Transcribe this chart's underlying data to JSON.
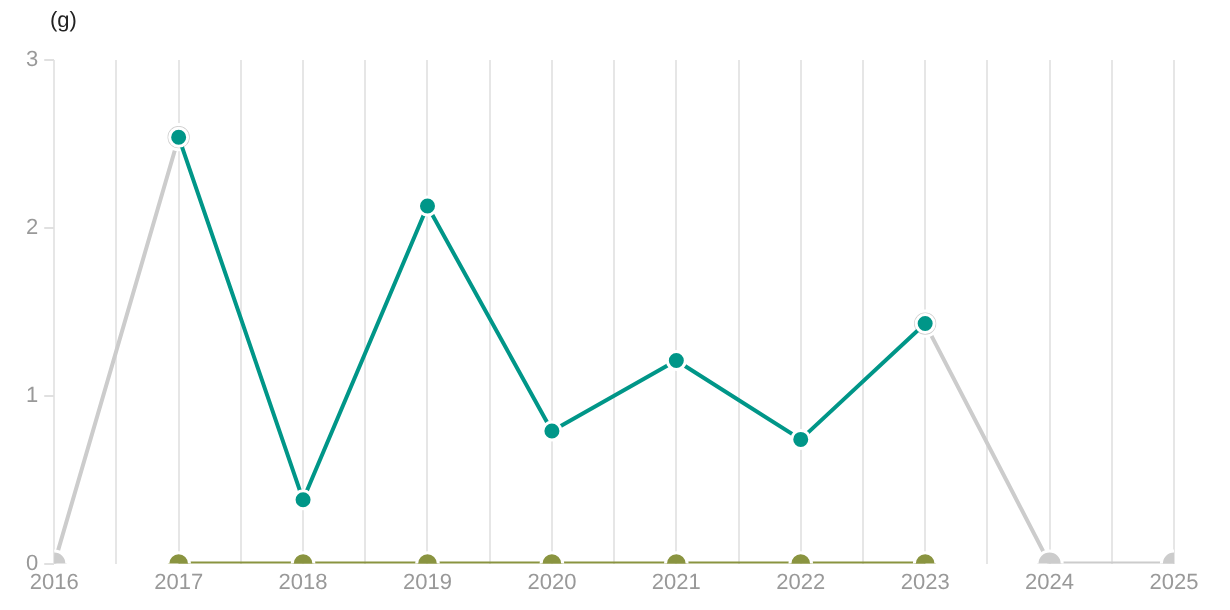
{
  "chart_data": {
    "type": "line",
    "ylabel": "(g)",
    "x": [
      2016,
      2017,
      2018,
      2019,
      2020,
      2021,
      2022,
      2023,
      2024,
      2025
    ],
    "series": [
      {
        "color": "#cccccc",
        "values": [
          0,
          2.54,
          null,
          null,
          null,
          null,
          null,
          1.43,
          0,
          0
        ]
      },
      {
        "color": "#8a9440",
        "values": [
          null,
          0,
          0,
          0,
          0,
          0,
          0,
          0,
          null,
          null
        ]
      },
      {
        "color": "#009688",
        "values": [
          null,
          2.54,
          0.38,
          2.13,
          0.79,
          1.21,
          0.74,
          1.43,
          null,
          null
        ]
      }
    ],
    "xlim": [
      2016,
      2025
    ],
    "xticks": [
      2016,
      {
        "value": 2016.5,
        "label": null
      },
      2017,
      {
        "value": 2017.5,
        "label": null
      },
      2018,
      {
        "value": 2018.5,
        "label": null
      },
      2019,
      {
        "value": 2019.5,
        "label": null
      },
      2020,
      {
        "value": 2020.5,
        "label": null
      },
      2021,
      {
        "value": 2021.5,
        "label": null
      },
      2022,
      {
        "value": 2022.5,
        "label": null
      },
      2023,
      {
        "value": 2023.5,
        "label": null
      },
      2024,
      {
        "value": 2024.5,
        "label": null
      },
      2025
    ],
    "ylim": [
      0,
      3
    ],
    "yticks": [
      0,
      1,
      2,
      3
    ],
    "grid": "x",
    "legend": false,
    "marker": "circle",
    "line_style": "solid"
  }
}
